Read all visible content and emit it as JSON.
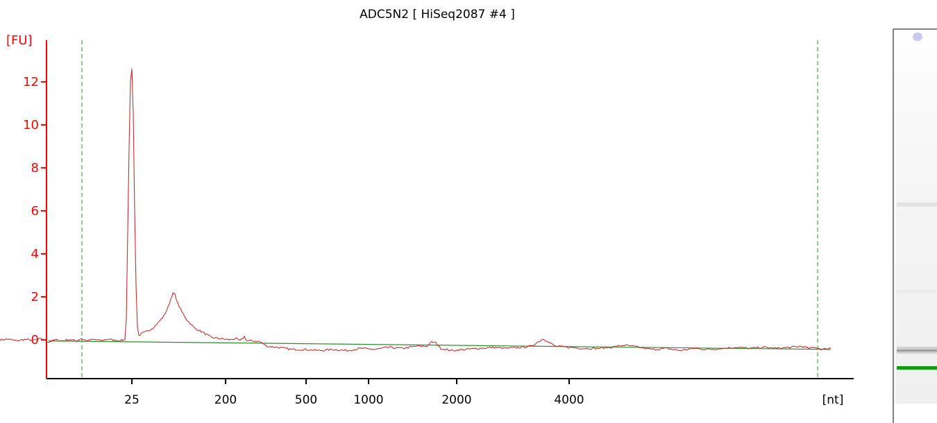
{
  "chart_data": {
    "type": "line",
    "title": "ADC5N2  [ HiSeq2087 #4 ]",
    "ylabel": "[FU]",
    "xlabel": "[nt]",
    "ylim": [
      -1.8,
      14
    ],
    "y_ticks": [
      0,
      2,
      4,
      6,
      8,
      10,
      12
    ],
    "x_ticks": [
      "25",
      "200",
      "500",
      "1000",
      "2000",
      "4000"
    ],
    "grid": false,
    "colors": {
      "axis_y": "#ff0000",
      "trace": "#c03030",
      "baseline": "#2e8b2e",
      "markers": "#2e8b2e",
      "axis_x": "#000000"
    },
    "series": [
      {
        "values": [
          [
            0,
            0.0
          ],
          [
            12,
            0.03
          ],
          [
            24,
            -0.05
          ],
          [
            36,
            0.02
          ],
          [
            48,
            -0.03
          ],
          [
            60,
            0.05
          ],
          [
            70,
            -0.1
          ],
          [
            80,
            0.0
          ],
          [
            90,
            -0.05
          ],
          [
            100,
            0.02
          ],
          [
            110,
            -0.06
          ],
          [
            117,
            0.06
          ],
          [
            125,
            -0.05
          ],
          [
            135,
            0.02
          ],
          [
            145,
            -0.04
          ],
          [
            155,
            0.03
          ],
          [
            165,
            -0.02
          ],
          [
            175,
            -0.03
          ],
          [
            180,
            0.0
          ],
          [
            182,
            1.0
          ],
          [
            184,
            5.0
          ],
          [
            186,
            9.0
          ],
          [
            188,
            12.1
          ],
          [
            190,
            12.6
          ],
          [
            192,
            10.5
          ],
          [
            194,
            6.0
          ],
          [
            196,
            2.5
          ],
          [
            198,
            0.6
          ],
          [
            200,
            0.2
          ],
          [
            205,
            0.3
          ],
          [
            212,
            0.4
          ],
          [
            220,
            0.55
          ],
          [
            228,
            0.8
          ],
          [
            236,
            1.1
          ],
          [
            242,
            1.5
          ],
          [
            246,
            1.9
          ],
          [
            249,
            2.15
          ],
          [
            252,
            2.1
          ],
          [
            256,
            1.7
          ],
          [
            262,
            1.3
          ],
          [
            270,
            0.9
          ],
          [
            280,
            0.55
          ],
          [
            292,
            0.35
          ],
          [
            305,
            0.1
          ],
          [
            318,
            0.05
          ],
          [
            330,
            0.0
          ],
          [
            340,
            0.05
          ],
          [
            346,
            -0.05
          ],
          [
            352,
            0.15
          ],
          [
            356,
            -0.05
          ],
          [
            365,
            -0.05
          ],
          [
            375,
            -0.1
          ],
          [
            385,
            -0.3
          ],
          [
            400,
            -0.35
          ],
          [
            420,
            -0.45
          ],
          [
            440,
            -0.45
          ],
          [
            460,
            -0.5
          ],
          [
            480,
            -0.45
          ],
          [
            500,
            -0.5
          ],
          [
            520,
            -0.4
          ],
          [
            540,
            -0.45
          ],
          [
            560,
            -0.35
          ],
          [
            580,
            -0.4
          ],
          [
            600,
            -0.3
          ],
          [
            615,
            -0.3
          ],
          [
            622,
            -0.1
          ],
          [
            628,
            -0.15
          ],
          [
            635,
            -0.4
          ],
          [
            650,
            -0.5
          ],
          [
            670,
            -0.45
          ],
          [
            690,
            -0.4
          ],
          [
            710,
            -0.35
          ],
          [
            730,
            -0.4
          ],
          [
            750,
            -0.35
          ],
          [
            765,
            -0.3
          ],
          [
            775,
            -0.1
          ],
          [
            783,
            0.05
          ],
          [
            790,
            -0.1
          ],
          [
            800,
            -0.3
          ],
          [
            820,
            -0.35
          ],
          [
            840,
            -0.4
          ],
          [
            860,
            -0.4
          ],
          [
            880,
            -0.35
          ],
          [
            900,
            -0.25
          ],
          [
            920,
            -0.35
          ],
          [
            940,
            -0.45
          ],
          [
            960,
            -0.4
          ],
          [
            980,
            -0.5
          ],
          [
            1000,
            -0.4
          ],
          [
            1020,
            -0.45
          ],
          [
            1040,
            -0.4
          ],
          [
            1060,
            -0.35
          ],
          [
            1080,
            -0.4
          ],
          [
            1100,
            -0.35
          ],
          [
            1120,
            -0.4
          ],
          [
            1140,
            -0.35
          ],
          [
            1155,
            -0.3
          ],
          [
            1165,
            -0.4
          ],
          [
            1175,
            -0.35
          ],
          [
            1185,
            -0.45
          ],
          [
            1197,
            -0.38
          ]
        ]
      },
      {
        "values": [
          [
            70,
            -0.05
          ],
          [
            1197,
            -0.45
          ]
        ]
      }
    ]
  }
}
